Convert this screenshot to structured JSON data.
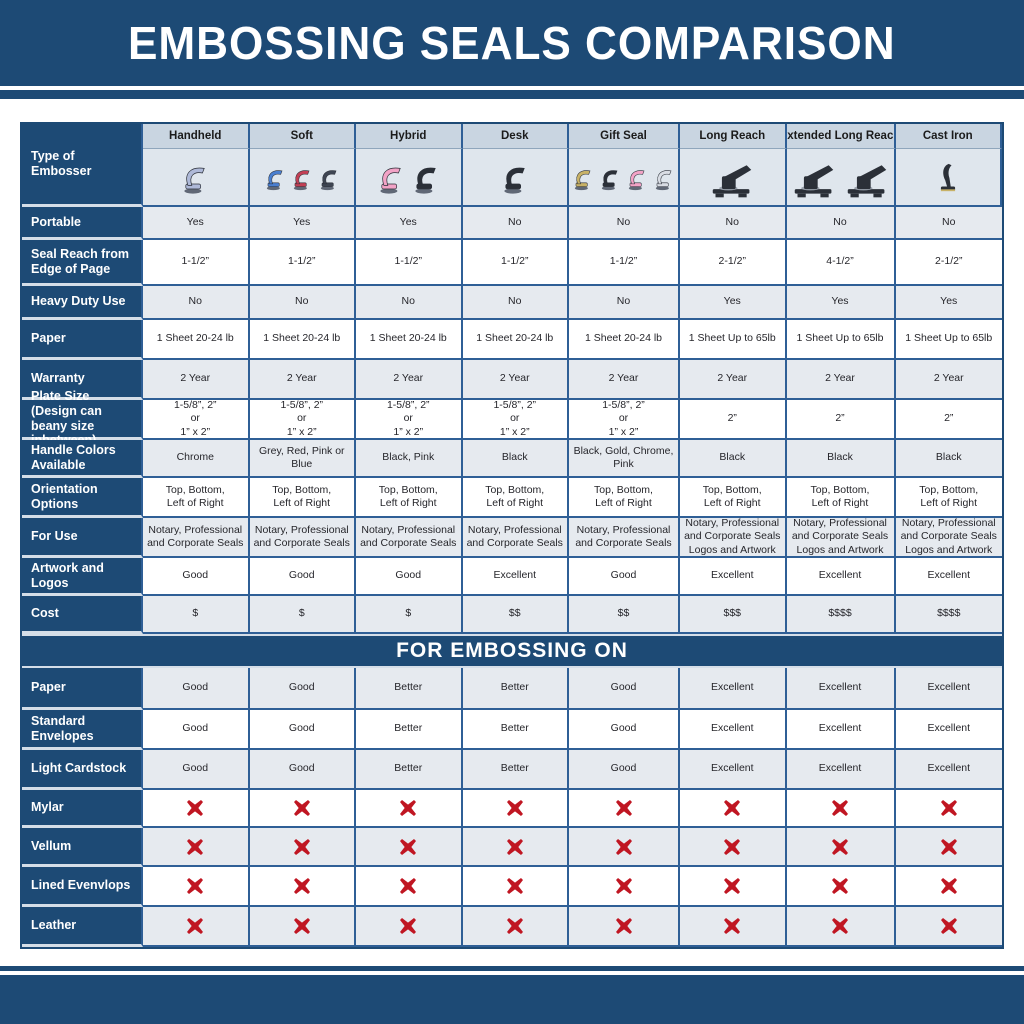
{
  "header": {
    "title": "EMBOSSING SEALS COMPARISON"
  },
  "colors": {
    "banner_blue": "#1D4A75",
    "grid_border_blue": "#2F5F96",
    "row_light": "#E6EAEF",
    "column_header_strip": "#C9D5E1",
    "image_row_bg": "#DFE6ED",
    "not_suitable_red": "#C01622"
  },
  "chart_data": {
    "type": "table",
    "title": "EMBOSSING SEALS COMPARISON",
    "corner_label": "Type of Embosser",
    "columns": [
      "Handheld",
      "Soft",
      "Hybrid",
      "Desk",
      "Gift Seal",
      "Long Reach",
      "Extended Long Reach",
      "Cast Iron"
    ],
    "spec_rows": [
      {
        "label": "Portable",
        "values": [
          "Yes",
          "Yes",
          "Yes",
          "No",
          "No",
          "No",
          "No",
          "No"
        ]
      },
      {
        "label": "Seal Reach from Edge of Page",
        "values": [
          "1-1/2”",
          "1-1/2”",
          "1-1/2”",
          "1-1/2”",
          "1-1/2”",
          "2-1/2”",
          "4-1/2”",
          "2-1/2”"
        ]
      },
      {
        "label": "Heavy Duty Use",
        "values": [
          "No",
          "No",
          "No",
          "No",
          "No",
          "Yes",
          "Yes",
          "Yes"
        ]
      },
      {
        "label": "Paper",
        "values": [
          "1 Sheet 20-24 lb",
          "1 Sheet 20-24 lb",
          "1 Sheet 20-24 lb",
          "1 Sheet 20-24 lb",
          "1 Sheet 20-24 lb",
          "1 Sheet Up to 65lb",
          "1 Sheet Up to 65lb",
          "1 Sheet Up to 65lb"
        ]
      },
      {
        "label": "Warranty",
        "values": [
          "2 Year",
          "2 Year",
          "2 Year",
          "2 Year",
          "2 Year",
          "2 Year",
          "2 Year",
          "2 Year"
        ]
      },
      {
        "label": "Plate Size (Design can beany size inbetween)",
        "values": [
          "1-5/8”, 2”\nor\n1” x 2”",
          "1-5/8”, 2”\nor\n1” x 2”",
          "1-5/8”, 2”\nor\n1” x 2”",
          "1-5/8”, 2”\nor\n1” x 2”",
          "1-5/8”, 2”\nor\n1” x 2”",
          "2”",
          "2”",
          "2”"
        ]
      },
      {
        "label": "Handle Colors Available",
        "values": [
          "Chrome",
          "Grey, Red, Pink or Blue",
          "Black, Pink",
          "Black",
          "Black, Gold, Chrome, Pink",
          "Black",
          "Black",
          "Black"
        ]
      },
      {
        "label": "Orientation Options",
        "values": [
          "Top, Bottom,\nLeft of Right",
          "Top, Bottom,\nLeft of Right",
          "Top, Bottom,\nLeft of Right",
          "Top, Bottom,\nLeft of Right",
          "Top, Bottom,\nLeft of Right",
          "Top, Bottom,\nLeft of Right",
          "Top, Bottom,\nLeft of Right",
          "Top, Bottom,\nLeft of Right"
        ]
      },
      {
        "label": "For Use",
        "values": [
          "Notary, Professional\nand Corporate Seals",
          "Notary, Professional\nand Corporate Seals",
          "Notary, Professional\nand Corporate Seals",
          "Notary, Professional\nand Corporate Seals",
          "Notary, Professional\nand Corporate Seals",
          "Notary, Professional\nand Corporate Seals\nLogos and Artwork",
          "Notary, Professional\nand Corporate Seals\nLogos and Artwork",
          "Notary, Professional\nand Corporate Seals\nLogos and Artwork"
        ]
      },
      {
        "label": "Artwork and Logos",
        "values": [
          "Good",
          "Good",
          "Good",
          "Excellent",
          "Good",
          "Excellent",
          "Excellent",
          "Excellent"
        ]
      },
      {
        "label": "Cost",
        "values": [
          "$",
          "$",
          "$",
          "$$",
          "$$",
          "$$$",
          "$$$$",
          "$$$$"
        ]
      }
    ],
    "section_header": "FOR EMBOSSING ON",
    "embossing_rows": [
      {
        "label": "Paper",
        "values": [
          "Good",
          "Good",
          "Better",
          "Better",
          "Good",
          "Excellent",
          "Excellent",
          "Excellent"
        ]
      },
      {
        "label": "Standard Envelopes",
        "values": [
          "Good",
          "Good",
          "Better",
          "Better",
          "Good",
          "Excellent",
          "Excellent",
          "Excellent"
        ]
      },
      {
        "label": "Light Cardstock",
        "values": [
          "Good",
          "Good",
          "Better",
          "Better",
          "Good",
          "Excellent",
          "Excellent",
          "Excellent"
        ]
      },
      {
        "label": "Mylar",
        "values": [
          "✗",
          "✗",
          "✗",
          "✗",
          "✗",
          "✗",
          "✗",
          "✗"
        ]
      },
      {
        "label": "Vellum",
        "values": [
          "✗",
          "✗",
          "✗",
          "✗",
          "✗",
          "✗",
          "✗",
          "✗"
        ]
      },
      {
        "label": "Lined Evenvlops",
        "values": [
          "✗",
          "✗",
          "✗",
          "✗",
          "✗",
          "✗",
          "✗",
          "✗"
        ]
      },
      {
        "label": "Leather",
        "values": [
          "✗",
          "✗",
          "✗",
          "✗",
          "✗",
          "✗",
          "✗",
          "✗"
        ]
      }
    ],
    "not_suitable_symbol": "✗"
  },
  "embosser_images": [
    {
      "icon": "handheld-embosser-image",
      "style": "clamp",
      "units": [
        "#AEB9D8"
      ]
    },
    {
      "icon": "soft-embosser-image",
      "style": "clamp",
      "units": [
        "#4A7FD0",
        "#C24055",
        "#3E4552"
      ]
    },
    {
      "icon": "hybrid-embosser-image",
      "style": "clamp",
      "units": [
        "#F2A3C6",
        "#2B3038"
      ]
    },
    {
      "icon": "desk-embosser-image",
      "style": "clamp",
      "units": [
        "#2B3038"
      ]
    },
    {
      "icon": "gift-seal-embosser-image",
      "style": "clamp",
      "units": [
        "#C8B267",
        "#2B3038",
        "#F2A3C6",
        "#D9DDE4"
      ]
    },
    {
      "icon": "long-reach-embosser-image",
      "style": "press",
      "units": [
        "#2B3038"
      ]
    },
    {
      "icon": "extended-long-reach-embosser-image",
      "style": "press",
      "units": [
        "#2B3038",
        "#2B3038"
      ]
    },
    {
      "icon": "cast-iron-embosser-image",
      "style": "upright",
      "units": [
        "#2B3038"
      ]
    }
  ],
  "footer": {
    "bar": ""
  }
}
